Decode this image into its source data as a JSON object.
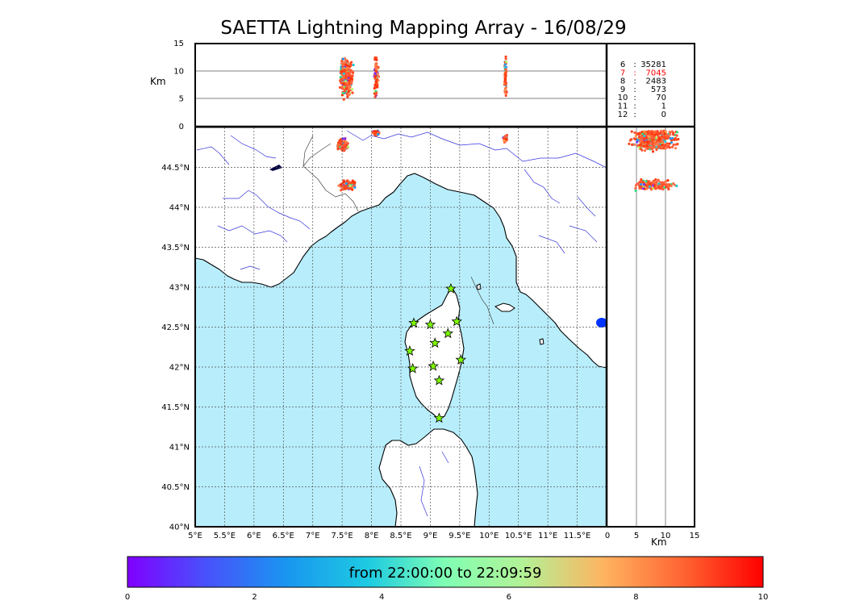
{
  "title": "SAETTA Lightning Mapping Array - 16/08/29",
  "colors": {
    "sea": "#b8eefc",
    "land": "#ffffff",
    "coast": "#000000",
    "rivers": "#3333dd",
    "station": "#7fff00",
    "grid": "#555555"
  },
  "map": {
    "lon_range": [
      5,
      12
    ],
    "lat_range": [
      40,
      45
    ],
    "lon_ticks": [
      "5°E",
      "5.5°E",
      "6°E",
      "6.5°E",
      "7°E",
      "7.5°E",
      "8°E",
      "8.5°E",
      "9°E",
      "9.5°E",
      "10°E",
      "10.5°E",
      "11°E",
      "11.5°E"
    ],
    "lat_ticks": [
      "40°N",
      "40.5°N",
      "41°N",
      "41.5°N",
      "42°N",
      "42.5°N",
      "43°N",
      "43.5°N",
      "44°N",
      "44.5°N"
    ],
    "stations": [
      {
        "lon": 9.35,
        "lat": 42.98
      },
      {
        "lon": 8.72,
        "lat": 42.55
      },
      {
        "lon": 9.0,
        "lat": 42.53
      },
      {
        "lon": 9.45,
        "lat": 42.57
      },
      {
        "lon": 9.3,
        "lat": 42.42
      },
      {
        "lon": 9.08,
        "lat": 42.3
      },
      {
        "lon": 8.65,
        "lat": 42.2
      },
      {
        "lon": 9.52,
        "lat": 42.09
      },
      {
        "lon": 9.05,
        "lat": 42.01
      },
      {
        "lon": 8.7,
        "lat": 41.98
      },
      {
        "lon": 9.15,
        "lat": 41.83
      },
      {
        "lon": 9.15,
        "lat": 41.36
      }
    ],
    "lightning_clusters": [
      {
        "lon": 7.52,
        "lat": 44.78,
        "spread": [
          0.12,
          0.1
        ]
      },
      {
        "lon": 7.6,
        "lat": 44.28,
        "spread": [
          0.18,
          0.08
        ]
      },
      {
        "lon": 8.08,
        "lat": 44.93,
        "spread": [
          0.08,
          0.04
        ]
      },
      {
        "lon": 10.28,
        "lat": 44.86,
        "spread": [
          0.04,
          0.06
        ]
      }
    ]
  },
  "altitude_panel": {
    "ylabel": "Km",
    "y_ticks": [
      "0",
      "5",
      "10",
      "15"
    ]
  },
  "side_panel": {
    "xlabel": "Km",
    "x_ticks": [
      "0",
      "5",
      "10",
      "15"
    ]
  },
  "stats": [
    {
      "stations": "6",
      "count": "35281",
      "highlight": false
    },
    {
      "stations": "7",
      "count": "7045",
      "highlight": true
    },
    {
      "stations": "8",
      "count": "2483",
      "highlight": false
    },
    {
      "stations": "9",
      "count": "573",
      "highlight": false
    },
    {
      "stations": "10",
      "count": "70",
      "highlight": false
    },
    {
      "stations": "11",
      "count": "1",
      "highlight": false
    },
    {
      "stations": "12",
      "count": "0",
      "highlight": false
    }
  ],
  "colorbar": {
    "label": "from 22:00:00 to 22:09:59",
    "ticks": [
      "0",
      "2",
      "4",
      "6",
      "8",
      "10"
    ]
  }
}
